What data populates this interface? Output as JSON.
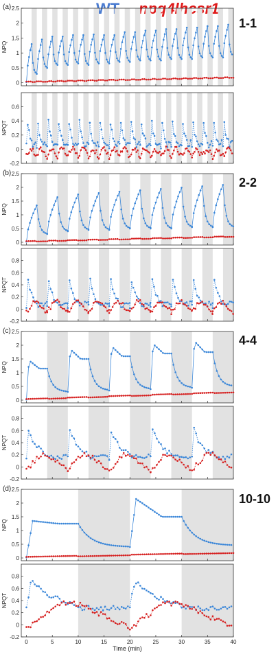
{
  "legend": {
    "wt": "WT",
    "mutant": "npq4lhcsr1"
  },
  "colors": {
    "wt": "#3a86d8",
    "mutant": "#d62020",
    "shade": "#e2e2e2"
  },
  "xlabel": "Time (min)",
  "xticks": [
    0,
    5,
    10,
    15,
    20,
    25,
    30,
    35,
    40
  ],
  "chart_data": [
    {
      "type": "line",
      "panel": "(a)",
      "regime": "1-1",
      "period_min": 1,
      "xlim": [
        -1,
        40
      ],
      "npq": {
        "ylabel": "NPQ",
        "ylim": [
          -0.1,
          2.5
        ],
        "yticks": [
          0,
          0.5,
          1,
          1.5,
          2,
          2.5
        ],
        "series": [
          {
            "name": "WT",
            "on": [
              1.3,
              1.45,
              1.55,
              1.55,
              1.6,
              1.6,
              1.62,
              1.6,
              1.6,
              1.7,
              1.7,
              1.75,
              1.75,
              1.8,
              1.8,
              1.85,
              1.85,
              1.9,
              1.9,
              1.95
            ],
            "off": [
              0.3,
              0.5,
              0.6,
              0.6,
              0.65,
              0.6,
              0.65,
              0.65,
              0.7,
              0.7,
              0.75,
              0.75,
              0.75,
              0.8,
              0.8,
              0.8,
              0.85,
              0.85,
              0.85,
              0.9
            ]
          },
          {
            "name": "npq4lhcsr1",
            "start": 0.02,
            "end": 0.17
          }
        ]
      },
      "npqt": {
        "ylabel": "NPQT",
        "ylim": [
          -0.2,
          0.8
        ],
        "yticks": [
          -0.2,
          0,
          0.2,
          0.4,
          0.6
        ],
        "series": [
          {
            "name": "WT",
            "peak": 0.62,
            "base": 0.05
          },
          {
            "name": "npq4lhcsr1",
            "peak": 0.0,
            "base": -0.1
          }
        ]
      }
    },
    {
      "type": "line",
      "panel": "(b)",
      "regime": "2-2",
      "period_min": 2,
      "xlim": [
        -1,
        40
      ],
      "npq": {
        "ylabel": "NPQ",
        "ylim": [
          -0.1,
          2.5
        ],
        "yticks": [
          0,
          0.5,
          1,
          1.5,
          2,
          2.5
        ],
        "series": [
          {
            "name": "WT",
            "on": [
              1.35,
              1.65,
              1.75,
              1.8,
              1.85,
              1.9,
              1.95,
              2.0,
              2.05,
              2.1
            ],
            "off": [
              0.3,
              0.4,
              0.45,
              0.45,
              0.5,
              0.5,
              0.5,
              0.55,
              0.55,
              0.55
            ]
          },
          {
            "name": "npq4lhcsr1",
            "start": 0.02,
            "end": 0.2
          }
        ]
      },
      "npqt": {
        "ylabel": "NPQT",
        "ylim": [
          -0.2,
          1.0
        ],
        "yticks": [
          -0.2,
          0,
          0.2,
          0.4,
          0.6,
          0.8
        ],
        "series": [
          {
            "name": "WT",
            "peak": 0.65,
            "base": 0.05
          },
          {
            "name": "npq4lhcsr1",
            "peak": 0.12,
            "base": -0.05
          }
        ]
      }
    },
    {
      "type": "line",
      "panel": "(c)",
      "regime": "4-4",
      "period_min": 4,
      "xlim": [
        -1,
        40
      ],
      "npq": {
        "ylabel": "NPQ",
        "ylim": [
          -0.1,
          2.5
        ],
        "yticks": [
          0,
          0.5,
          1,
          1.5,
          2,
          2.5
        ],
        "series": [
          {
            "name": "WT",
            "on": [
              1.45,
              1.85,
              1.95,
              2.05,
              2.15
            ],
            "off": [
              0.3,
              0.35,
              0.4,
              0.45,
              0.5
            ],
            "plateau": [
              1.15,
              1.5,
              1.6,
              1.7,
              1.75
            ]
          },
          {
            "name": "npq4lhcsr1",
            "start": 0.02,
            "end": 0.28
          }
        ]
      },
      "npqt": {
        "ylabel": "NPQT",
        "ylim": [
          -0.2,
          1.0
        ],
        "yticks": [
          -0.2,
          0,
          0.2,
          0.4,
          0.6,
          0.8
        ],
        "series": [
          {
            "name": "WT",
            "peak": 0.72,
            "base": 0.15
          },
          {
            "name": "npq4lhcsr1",
            "peak": 0.2,
            "base": -0.05
          }
        ]
      }
    },
    {
      "type": "line",
      "panel": "(d)",
      "regime": "10-10",
      "period_min": 10,
      "xlim": [
        -1,
        40
      ],
      "npq": {
        "ylabel": "NPQ",
        "ylim": [
          -0.1,
          2.5
        ],
        "yticks": [
          0,
          0.5,
          1,
          1.5,
          2,
          2.5
        ],
        "series": [
          {
            "name": "WT",
            "on": [
              1.35,
              2.15
            ],
            "off": [
              0.4,
              0.45
            ],
            "plateau": [
              1.25,
              1.5
            ]
          },
          {
            "name": "npq4lhcsr1",
            "start": 0.02,
            "end": 0.18
          }
        ]
      },
      "npqt": {
        "ylabel": "NPQT",
        "ylim": [
          -0.2,
          1.0
        ],
        "yticks": [
          -0.2,
          0,
          0.2,
          0.4,
          0.6,
          0.8
        ],
        "series": [
          {
            "name": "WT",
            "peak": 0.85,
            "base": 0.28
          },
          {
            "name": "npq4lhcsr1",
            "peak": 0.35,
            "base": -0.05
          }
        ]
      }
    }
  ]
}
